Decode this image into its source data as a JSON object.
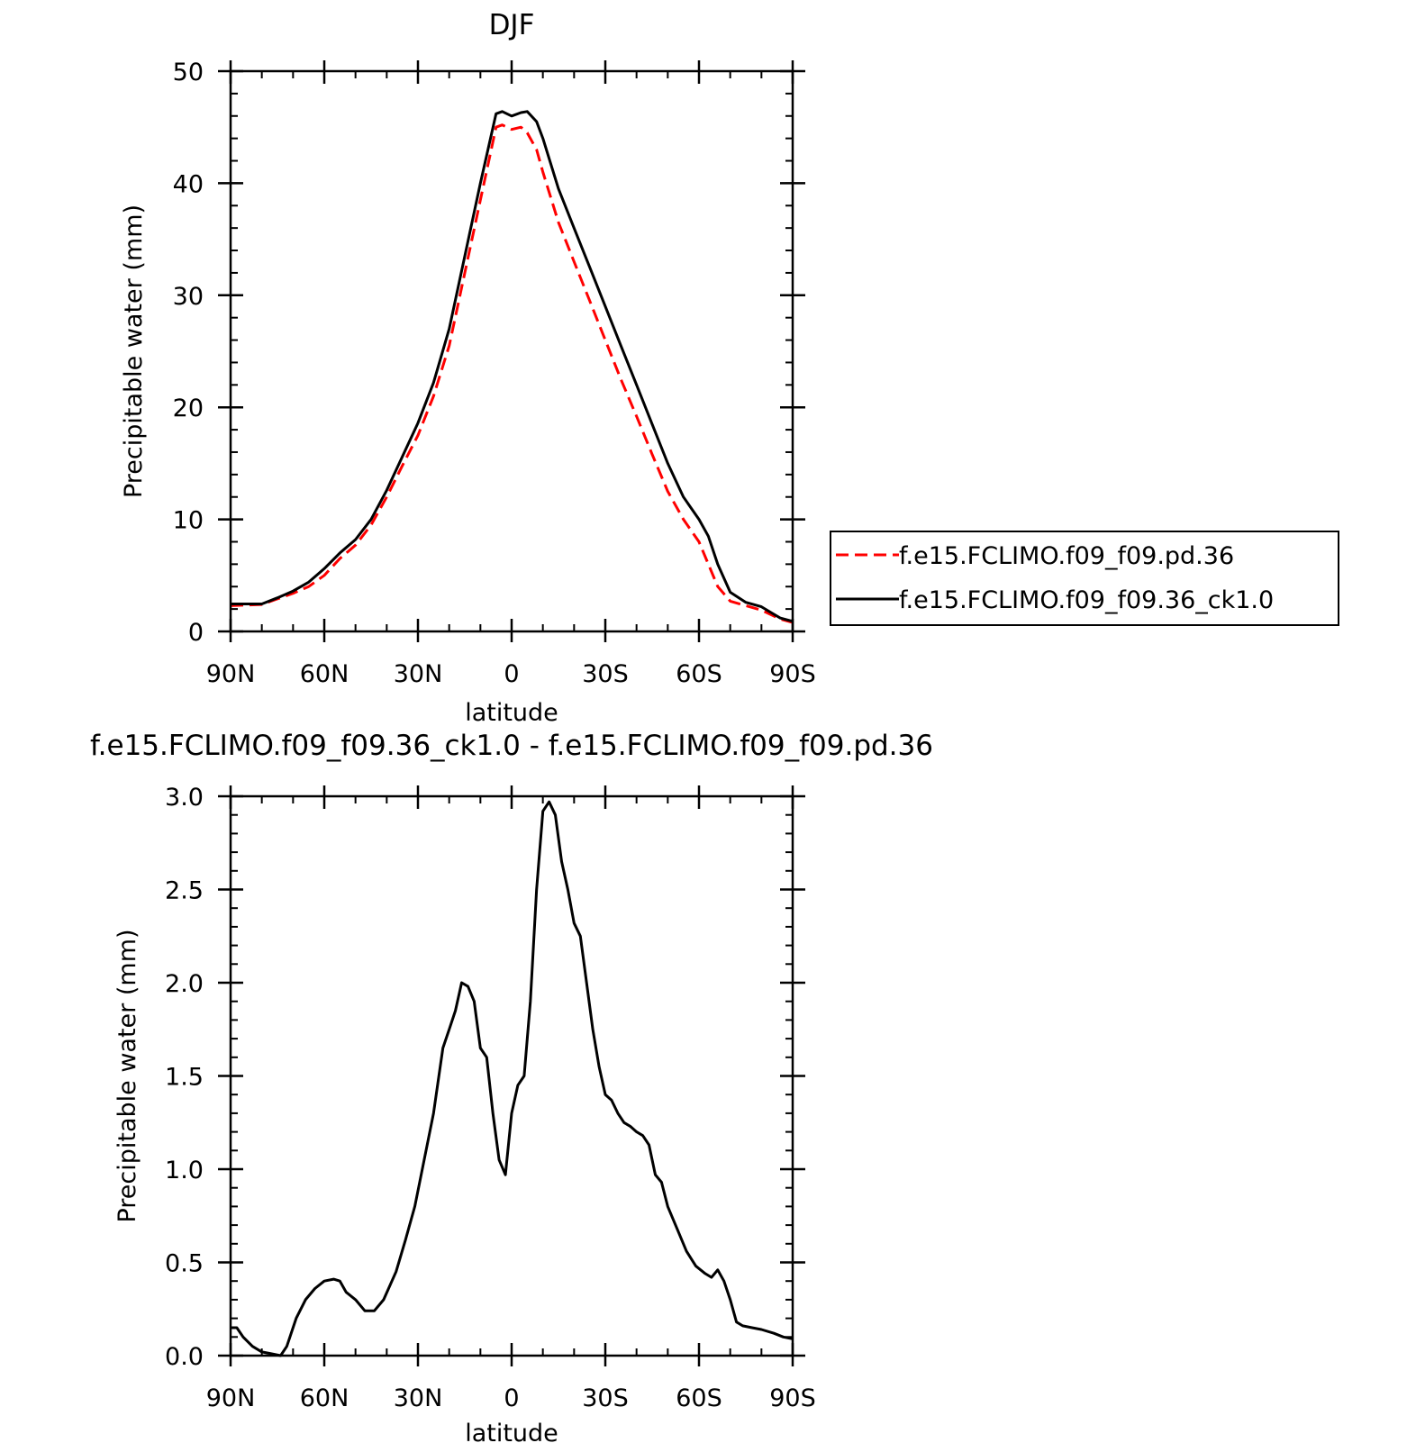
{
  "chart_data": [
    {
      "type": "line",
      "title": "DJF",
      "xlabel": "latitude",
      "ylabel": "Precipitable water (mm)",
      "xlim": [
        90,
        -90
      ],
      "ylim": [
        0,
        50
      ],
      "x_ticks": [
        {
          "value": 90,
          "label": "90N"
        },
        {
          "value": 60,
          "label": "60N"
        },
        {
          "value": 30,
          "label": "30N"
        },
        {
          "value": 0,
          "label": "0"
        },
        {
          "value": -30,
          "label": "30S"
        },
        {
          "value": -60,
          "label": "60S"
        },
        {
          "value": -90,
          "label": "90S"
        }
      ],
      "y_ticks": [
        {
          "value": 0,
          "label": "0"
        },
        {
          "value": 10,
          "label": "10"
        },
        {
          "value": 20,
          "label": "20"
        },
        {
          "value": 30,
          "label": "30"
        },
        {
          "value": 40,
          "label": "40"
        },
        {
          "value": 50,
          "label": "50"
        }
      ],
      "legend": "right",
      "series": [
        {
          "name": "f.e15.FCLIMO.f09_f09.pd.36",
          "color": "#ff0000",
          "dash": "dashed",
          "x": [
            90,
            85,
            80,
            75,
            70,
            65,
            60,
            55,
            50,
            45,
            40,
            35,
            30,
            25,
            20,
            15,
            10,
            5,
            3,
            0,
            -3,
            -5,
            -8,
            -10,
            -15,
            -20,
            -25,
            -30,
            -35,
            -40,
            -45,
            -50,
            -55,
            -60,
            -63,
            -66,
            -70,
            -75,
            -80,
            -83,
            -86,
            -90
          ],
          "y": [
            2.3,
            2.35,
            2.4,
            2.9,
            3.4,
            4.0,
            5.0,
            6.5,
            7.7,
            9.5,
            12.0,
            14.8,
            17.5,
            21.0,
            25.5,
            32.0,
            38.5,
            45.0,
            45.2,
            44.8,
            45.0,
            44.5,
            43.0,
            41.0,
            36.5,
            33.0,
            29.5,
            26.0,
            22.5,
            19.2,
            15.8,
            12.5,
            10.0,
            8.0,
            6.0,
            4.0,
            2.7,
            2.3,
            1.9,
            1.5,
            1.1,
            0.8
          ]
        },
        {
          "name": "f.e15.FCLIMO.f09_f09.36_ck1.0",
          "color": "#000000",
          "dash": "solid",
          "x": [
            90,
            85,
            80,
            75,
            70,
            65,
            60,
            55,
            50,
            45,
            40,
            35,
            30,
            25,
            20,
            15,
            10,
            5,
            3,
            0,
            -3,
            -5,
            -8,
            -10,
            -15,
            -20,
            -25,
            -30,
            -35,
            -40,
            -45,
            -50,
            -55,
            -60,
            -63,
            -66,
            -70,
            -75,
            -80,
            -83,
            -86,
            -90
          ],
          "y": [
            2.45,
            2.45,
            2.45,
            3.0,
            3.6,
            4.4,
            5.6,
            7.0,
            8.2,
            10.0,
            12.6,
            15.6,
            18.6,
            22.2,
            27.0,
            33.5,
            40.0,
            46.2,
            46.4,
            46.0,
            46.3,
            46.4,
            45.5,
            44.0,
            39.5,
            36.0,
            32.5,
            29.0,
            25.5,
            22.0,
            18.5,
            15.0,
            12.0,
            10.0,
            8.5,
            6.0,
            3.5,
            2.6,
            2.2,
            1.7,
            1.2,
            0.9
          ]
        }
      ]
    },
    {
      "type": "line",
      "title": "f.e15.FCLIMO.f09_f09.36_ck1.0 - f.e15.FCLIMO.f09_f09.pd.36",
      "xlabel": "latitude",
      "ylabel": "Precipitable water (mm)",
      "xlim": [
        90,
        -90
      ],
      "ylim": [
        0,
        3.0
      ],
      "x_ticks": [
        {
          "value": 90,
          "label": "90N"
        },
        {
          "value": 60,
          "label": "60N"
        },
        {
          "value": 30,
          "label": "30N"
        },
        {
          "value": 0,
          "label": "0"
        },
        {
          "value": -30,
          "label": "30S"
        },
        {
          "value": -60,
          "label": "60S"
        },
        {
          "value": -90,
          "label": "90S"
        }
      ],
      "y_ticks": [
        {
          "value": 0,
          "label": "0.0"
        },
        {
          "value": 0.5,
          "label": "0.5"
        },
        {
          "value": 1.0,
          "label": "1.0"
        },
        {
          "value": 1.5,
          "label": "1.5"
        },
        {
          "value": 2.0,
          "label": "2.0"
        },
        {
          "value": 2.5,
          "label": "2.5"
        },
        {
          "value": 3.0,
          "label": "3.0"
        }
      ],
      "series": [
        {
          "color": "#000000",
          "dash": "solid",
          "x": [
            90,
            88,
            86,
            83,
            80,
            77,
            74,
            72,
            69,
            66,
            63,
            60,
            57,
            55,
            53,
            50,
            47,
            44,
            41,
            37,
            34,
            31,
            28,
            25,
            22,
            20,
            18,
            16,
            14,
            12,
            10,
            8,
            6,
            4,
            2,
            0,
            -2,
            -4,
            -6,
            -8,
            -10,
            -12,
            -14,
            -16,
            -18,
            -20,
            -22,
            -24,
            -26,
            -28,
            -30,
            -32,
            -34,
            -36,
            -38,
            -40,
            -42,
            -44,
            -46,
            -48,
            -50,
            -53,
            -56,
            -59,
            -62,
            -64,
            -66,
            -68,
            -70,
            -72,
            -74,
            -77,
            -80,
            -84,
            -87,
            -90
          ],
          "y": [
            0.15,
            0.15,
            0.1,
            0.05,
            0.02,
            0.01,
            0.0,
            0.05,
            0.2,
            0.3,
            0.36,
            0.4,
            0.41,
            0.4,
            0.34,
            0.3,
            0.24,
            0.24,
            0.3,
            0.45,
            0.62,
            0.8,
            1.05,
            1.3,
            1.65,
            1.75,
            1.85,
            2.0,
            1.98,
            1.9,
            1.65,
            1.6,
            1.3,
            1.05,
            0.97,
            1.3,
            1.45,
            1.5,
            1.9,
            2.5,
            2.92,
            2.97,
            2.9,
            2.65,
            2.5,
            2.32,
            2.25,
            2.0,
            1.75,
            1.55,
            1.4,
            1.37,
            1.3,
            1.25,
            1.23,
            1.2,
            1.18,
            1.13,
            0.97,
            0.93,
            0.8,
            0.68,
            0.56,
            0.48,
            0.44,
            0.42,
            0.46,
            0.4,
            0.3,
            0.18,
            0.16,
            0.15,
            0.14,
            0.12,
            0.1,
            0.09
          ]
        }
      ]
    }
  ]
}
